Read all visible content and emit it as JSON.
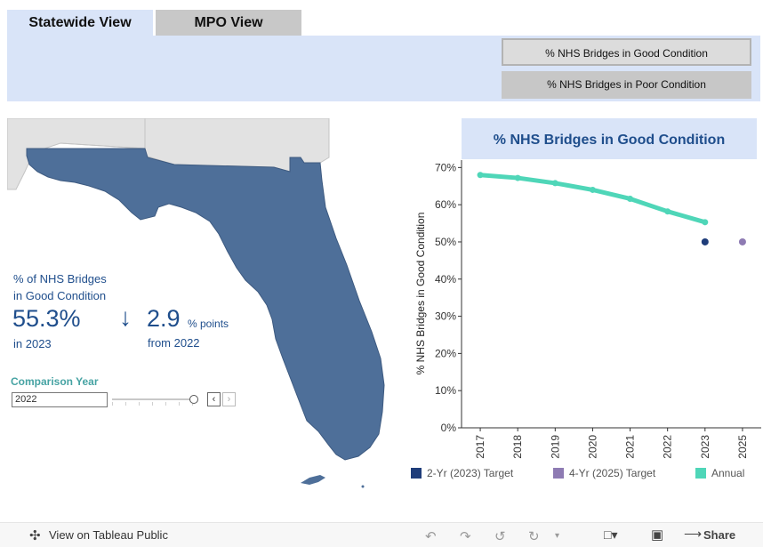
{
  "tabs": [
    {
      "label": "Statewide View"
    },
    {
      "label": "MPO View"
    }
  ],
  "metric_buttons": {
    "good_label": "% NHS Bridges in Good Condition",
    "poor_label": "% NHS Bridges in Poor Condition"
  },
  "kpi": {
    "title_line1": "% of NHS Bridges",
    "title_line2": "in Good Condition",
    "value": "55.3%",
    "year_text": "in 2023",
    "arrow": "↓",
    "change_value": "2.9",
    "change_unit": "% points",
    "change_year_text": "from 2022"
  },
  "comparison": {
    "label": "Comparison Year",
    "value": "2022"
  },
  "colors": {
    "florida_fill": "#4e6f99",
    "neighbor_fill": "#e2e2e2",
    "annual": "#4fd6b8",
    "target_2023": "#1f3d7a",
    "target_2025": "#8e7bb3",
    "kpi_blue": "#1f4e8c",
    "comparison_label": "#46a3a3"
  },
  "chart_data": {
    "type": "line",
    "title": "% NHS Bridges in Good Condition",
    "ylabel": "% NHS Bridges in Good Condition",
    "xlabel": "",
    "ylim": [
      0,
      72
    ],
    "yticks": [
      "0%",
      "10%",
      "20%",
      "30%",
      "40%",
      "50%",
      "60%",
      "70%"
    ],
    "ytick_values": [
      0,
      10,
      20,
      30,
      40,
      50,
      60,
      70
    ],
    "categories": [
      "2017",
      "2018",
      "2019",
      "2020",
      "2021",
      "2022",
      "2023",
      "2025"
    ],
    "series": [
      {
        "name": "Annual",
        "x": [
          "2017",
          "2018",
          "2019",
          "2020",
          "2021",
          "2022",
          "2023"
        ],
        "values": [
          68.0,
          67.2,
          65.8,
          64.0,
          61.6,
          58.2,
          55.3
        ]
      },
      {
        "name": "2-Yr (2023) Target",
        "x": [
          "2023"
        ],
        "values": [
          50.0
        ]
      },
      {
        "name": "4-Yr (2025) Target",
        "x": [
          "2025"
        ],
        "values": [
          50.0
        ]
      }
    ],
    "legend": [
      {
        "label": "2-Yr (2023) Target"
      },
      {
        "label": "4-Yr (2025) Target"
      },
      {
        "label": "Annual"
      }
    ]
  },
  "footer": {
    "view_label": "View on Tableau Public",
    "share_label": "Share"
  }
}
